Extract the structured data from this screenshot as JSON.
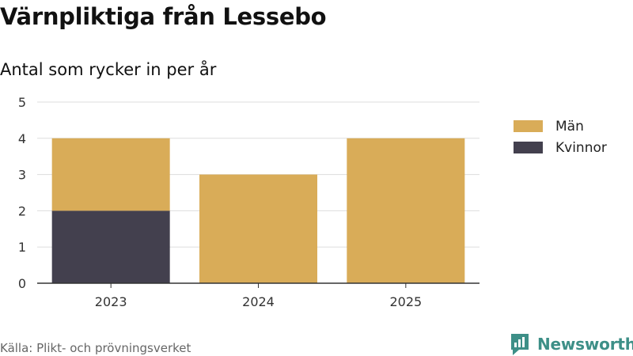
{
  "title": "Värnpliktiga från Lessebo",
  "subtitle": "Antal som rycker in per år",
  "source": "Källa: Plikt- och prövningsverket",
  "brand": "Newsworthy",
  "colors": {
    "man": "#d9ac58",
    "kvinnor": "#43404e",
    "grid": "#dddddd",
    "axis": "#333333",
    "brand": "#3d8f87"
  },
  "chart_data": {
    "type": "bar",
    "stacked": true,
    "title": "Värnpliktiga från Lessebo",
    "subtitle": "Antal som rycker in per år",
    "xlabel": "",
    "ylabel": "",
    "categories": [
      "2023",
      "2024",
      "2025"
    ],
    "series": [
      {
        "name": "Kvinnor",
        "values": [
          2,
          0,
          0
        ]
      },
      {
        "name": "Män",
        "values": [
          2,
          3,
          4
        ]
      }
    ],
    "ylim": [
      0,
      5
    ],
    "yticks": [
      0,
      1,
      2,
      3,
      4,
      5
    ],
    "legend": [
      "Män",
      "Kvinnor"
    ],
    "legend_position": "right",
    "grid": true
  }
}
